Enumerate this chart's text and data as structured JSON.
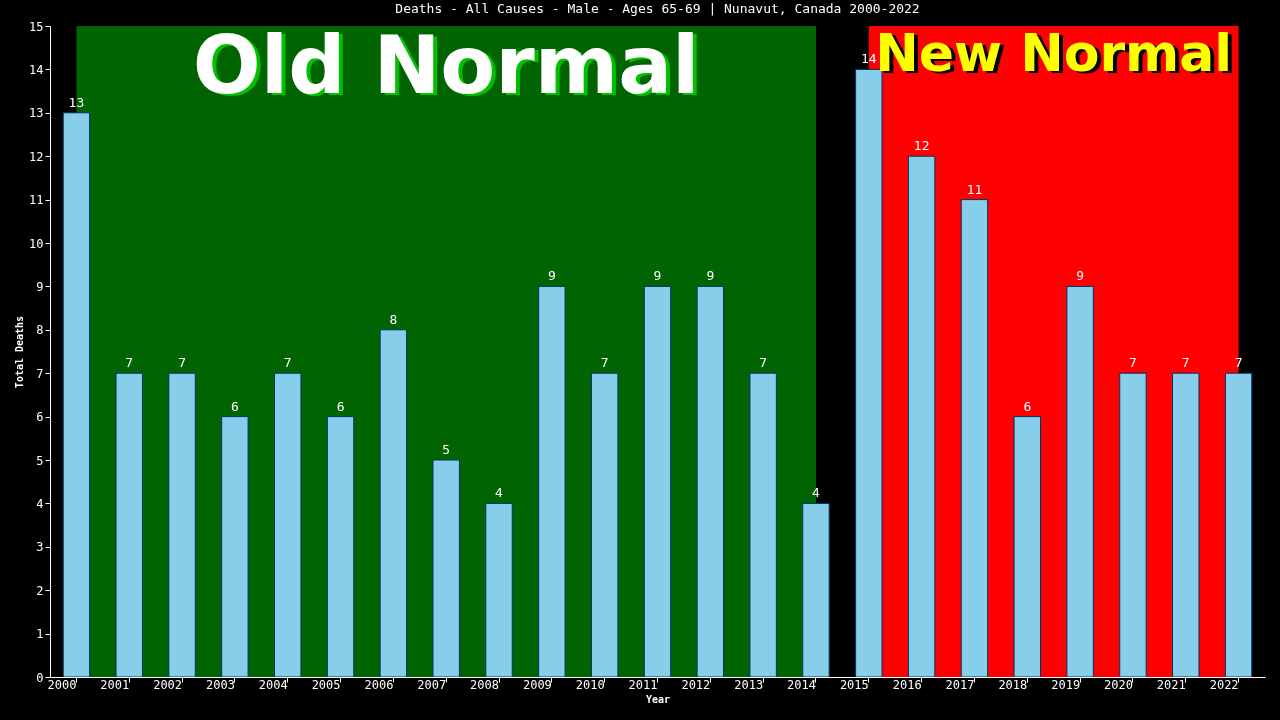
{
  "chart_data": {
    "type": "bar",
    "title": "Deaths - All Causes - Male - Ages 65-69 | Nunavut, Canada 2000-2022",
    "xlabel": "Year",
    "ylabel": "Total Deaths",
    "categories": [
      "2000",
      "2001",
      "2002",
      "2003",
      "2004",
      "2005",
      "2006",
      "2007",
      "2008",
      "2009",
      "2010",
      "2011",
      "2012",
      "2013",
      "2014",
      "2015",
      "2016",
      "2017",
      "2018",
      "2019",
      "2020",
      "2021",
      "2022"
    ],
    "values": [
      13,
      7,
      7,
      6,
      7,
      6,
      8,
      5,
      4,
      9,
      7,
      9,
      9,
      7,
      4,
      14,
      12,
      11,
      6,
      9,
      7,
      7,
      7
    ],
    "color": "#87ceeb",
    "ylim": [
      0,
      15
    ],
    "yticks": [
      0,
      1,
      2,
      3,
      4,
      5,
      6,
      7,
      8,
      9,
      10,
      11,
      12,
      13,
      14,
      15
    ],
    "data_labels": true,
    "grid": false,
    "legend": false,
    "bands": [
      {
        "axis": "x",
        "from": "2000",
        "to": "2014",
        "label": "Old Normal",
        "color": "#006400"
      },
      {
        "axis": "x",
        "from": "2015",
        "to": "2022",
        "label": "New Normal",
        "color": "#ff0000"
      }
    ]
  }
}
